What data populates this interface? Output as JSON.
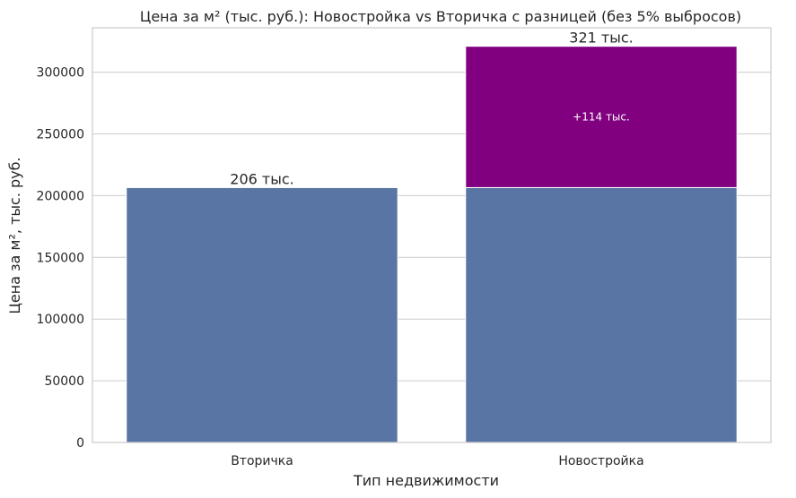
{
  "chart_data": {
    "type": "bar",
    "title": "Цена за м² (тыс. руб.): Новостройка vs Вторичка с разницей (без 5% выбросов)",
    "xlabel": "Тип недвижимости",
    "ylabel": "Цена за м², тыс. руб.",
    "categories": [
      "Вторичка",
      "Новостройка"
    ],
    "series": [
      {
        "values": [
          206500,
          206500
        ],
        "color": "#5975a4"
      },
      {
        "values": [
          0,
          114500
        ],
        "color": "#800080"
      }
    ],
    "totals": [
      206500,
      321000
    ],
    "bar_labels": [
      "206 тыс.",
      "321 тыс."
    ],
    "diff_labels": [
      "",
      "+114 тыс."
    ],
    "ylim": [
      0,
      336000
    ],
    "yticks": [
      0,
      50000,
      100000,
      150000,
      200000,
      250000,
      300000
    ],
    "ytick_labels": [
      "0",
      "50000",
      "100000",
      "150000",
      "200000",
      "250000",
      "300000"
    ],
    "grid": true,
    "legend": "none"
  }
}
